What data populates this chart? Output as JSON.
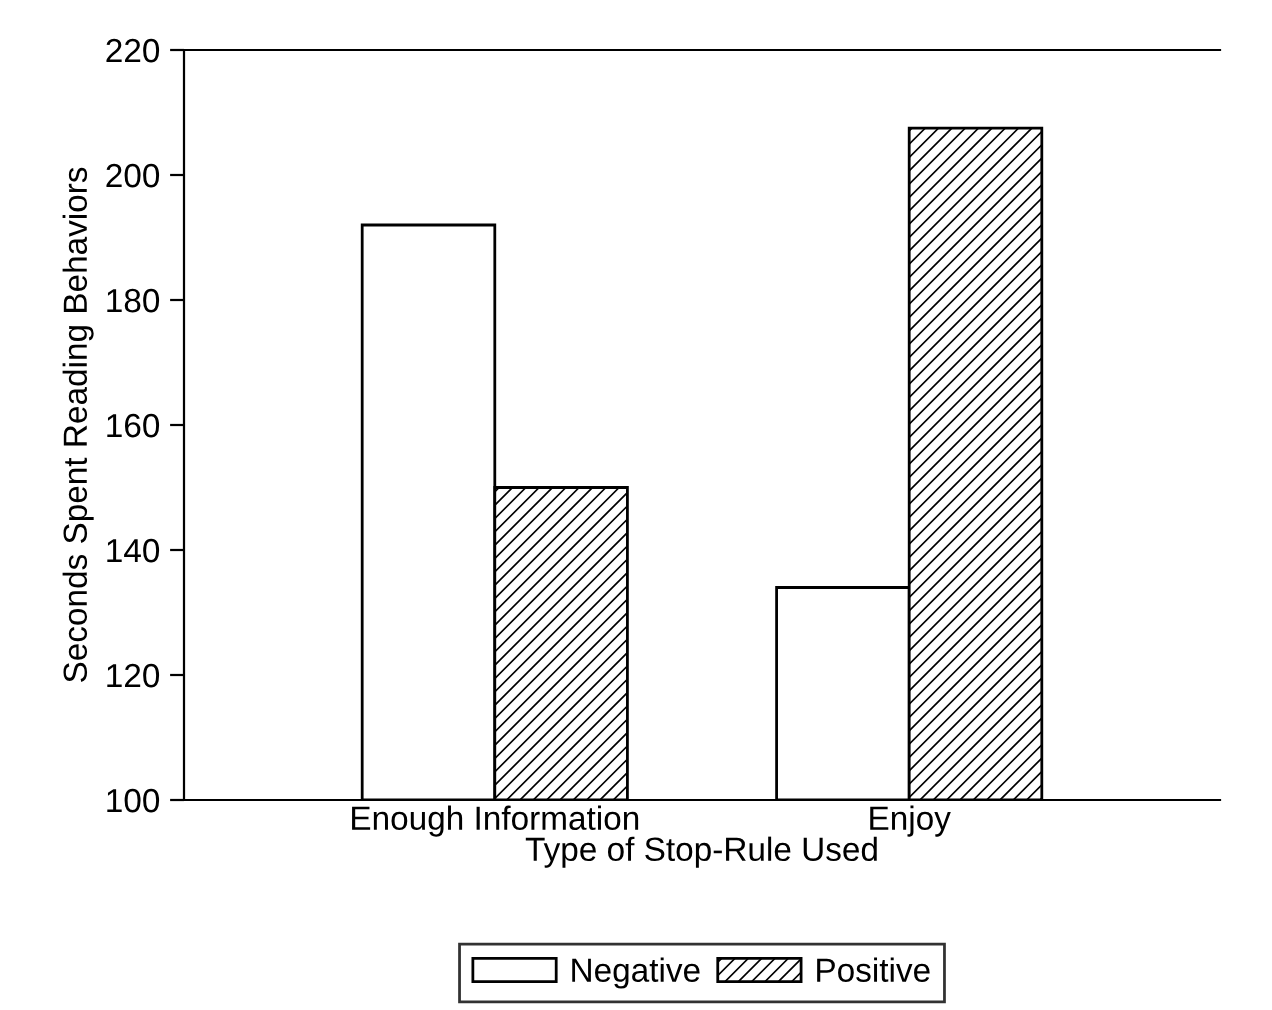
{
  "chart_data": {
    "type": "bar",
    "xlabel": "Type of Stop-Rule Used",
    "ylabel": "Seconds Spent Reading Behaviors",
    "categories": [
      "Enough Information",
      "Enjoy"
    ],
    "series": [
      {
        "name": "Negative",
        "color": "#ffffff",
        "values": [
          192,
          134
        ]
      },
      {
        "name": "Positive",
        "color": "#000000",
        "values": [
          150,
          207.5
        ]
      }
    ],
    "ylim": [
      100,
      220
    ],
    "yticks": [
      100,
      120,
      140,
      160,
      180,
      200,
      220
    ],
    "grid": false,
    "legend": "bottom"
  }
}
